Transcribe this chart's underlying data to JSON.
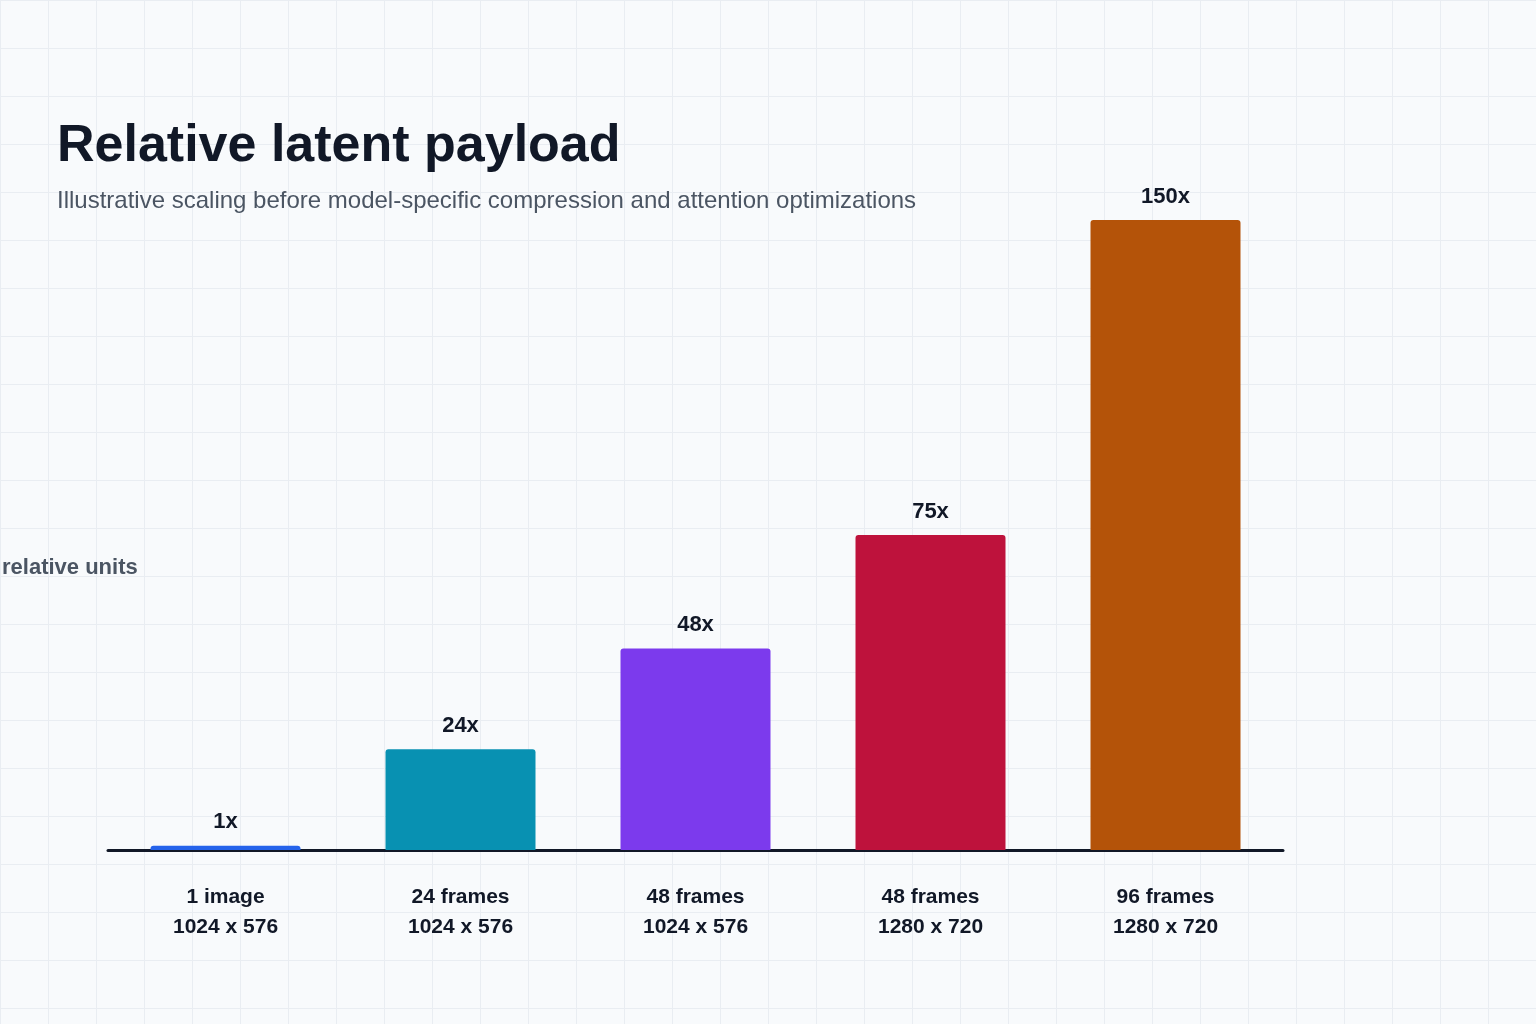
{
  "chart_data": {
    "type": "bar",
    "title": "Relative latent payload",
    "subtitle": "Illustrative scaling before model-specific compression and attention optimizations",
    "ylabel": "relative units",
    "categories": [
      "1 image\n1024 x 576",
      "24 frames\n1024 x 576",
      "48 frames\n1024 x 576",
      "48 frames\n1280 x 720",
      "96 frames\n1280 x 720"
    ],
    "values": [
      1,
      24,
      48,
      75,
      150
    ],
    "colors": [
      "#2563eb",
      "#0891b2",
      "#7c3aed",
      "#be123c",
      "#b45309"
    ],
    "value_labels": [
      "1x",
      "24x",
      "48x",
      "75x",
      "150x"
    ],
    "grid": false
  }
}
